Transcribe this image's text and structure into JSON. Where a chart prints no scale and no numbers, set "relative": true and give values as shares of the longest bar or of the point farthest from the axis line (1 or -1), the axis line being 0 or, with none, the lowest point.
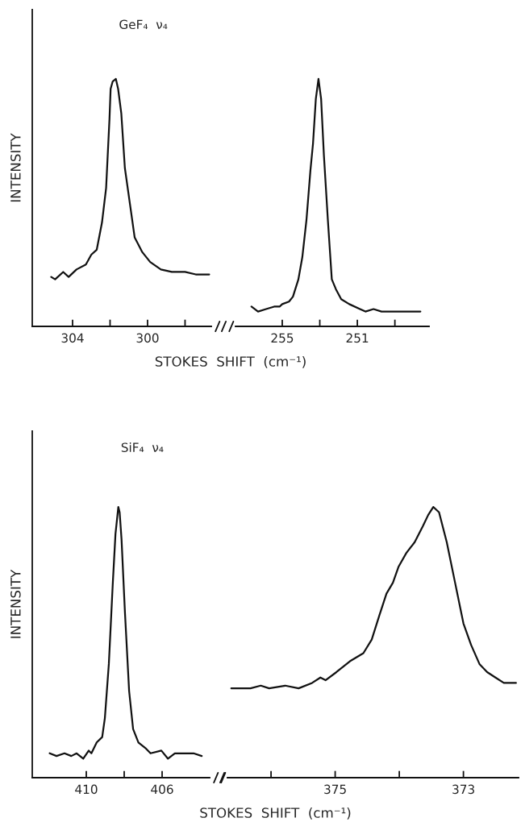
{
  "chart_data": [
    {
      "type": "line",
      "relative": true,
      "ylabel": "INTENSITY",
      "xlabel": "STOKES  SHIFT  (cm⁻¹)",
      "annotations": [
        "GeF₄  ν₄"
      ],
      "xlim": [
        306.15,
        296.6
      ],
      "xticks": [
        304,
        {
          "value": 302,
          "label": null
        },
        300,
        {
          "value": 298,
          "label": null
        }
      ],
      "tick_labels": "x",
      "grid": false,
      "legend": false,
      "series": [
        {
          "color": "#111111",
          "x": [
            305.14,
            304.93,
            304.5,
            304.21,
            303.79,
            303.29,
            303.0,
            302.71,
            302.43,
            302.21,
            302.03,
            301.97,
            301.86,
            301.69,
            301.57,
            301.4,
            301.21,
            300.93,
            300.69,
            300.28,
            299.86,
            299.29,
            298.71,
            298.0,
            297.43,
            296.71
          ],
          "values": [
            0.2,
            0.19,
            0.22,
            0.2,
            0.23,
            0.25,
            0.29,
            0.31,
            0.42,
            0.56,
            0.84,
            0.96,
            0.99,
            1.0,
            0.96,
            0.86,
            0.64,
            0.49,
            0.36,
            0.3,
            0.26,
            0.23,
            0.22,
            0.22,
            0.21,
            0.21
          ]
        }
      ]
    },
    {
      "type": "line",
      "relative": true,
      "xlim": [
        257.49,
        247.18
      ],
      "xticks": [
        255,
        {
          "value": 253,
          "label": null
        },
        251,
        {
          "value": 249,
          "label": null
        }
      ],
      "tick_labels": "x",
      "grid": false,
      "legend": false,
      "series": [
        {
          "color": "#111111",
          "x": [
            256.64,
            256.29,
            255.86,
            255.43,
            255.14,
            255.0,
            254.64,
            254.43,
            254.14,
            253.93,
            253.71,
            253.5,
            253.36,
            253.21,
            253.07,
            252.93,
            252.78,
            252.57,
            252.36,
            252.14,
            251.86,
            251.43,
            250.86,
            250.57,
            250.14,
            249.71,
            249.0,
            248.28,
            247.64
          ],
          "values": [
            0.08,
            0.06,
            0.07,
            0.08,
            0.08,
            0.09,
            0.1,
            0.12,
            0.19,
            0.28,
            0.43,
            0.63,
            0.74,
            0.92,
            1.0,
            0.92,
            0.69,
            0.43,
            0.19,
            0.15,
            0.11,
            0.09,
            0.07,
            0.06,
            0.07,
            0.06,
            0.06,
            0.06,
            0.06
          ]
        }
      ]
    },
    {
      "type": "line",
      "relative": true,
      "ylabel": "INTENSITY",
      "xlabel": "STOKES  SHIFT  (cm⁻¹)",
      "annotations": [
        "SiF₄  ν₄"
      ],
      "xlim": [
        412.85,
        403.49
      ],
      "xticks": [
        410,
        {
          "value": 408,
          "label": null
        },
        406
      ],
      "tick_labels": "x",
      "grid": false,
      "legend": false,
      "series": [
        {
          "color": "#111111",
          "x": [
            411.93,
            411.57,
            411.15,
            410.79,
            410.51,
            410.16,
            409.87,
            409.73,
            409.45,
            409.16,
            409.02,
            408.81,
            408.6,
            408.46,
            408.31,
            408.24,
            408.14,
            407.96,
            407.74,
            407.53,
            407.25,
            406.89,
            406.61,
            406.04,
            405.69,
            405.33,
            404.77,
            404.34,
            403.91
          ],
          "values": [
            0.09,
            0.08,
            0.09,
            0.08,
            0.09,
            0.07,
            0.1,
            0.09,
            0.13,
            0.15,
            0.22,
            0.42,
            0.72,
            0.9,
            1.0,
            0.98,
            0.88,
            0.61,
            0.32,
            0.18,
            0.13,
            0.11,
            0.09,
            0.1,
            0.07,
            0.09,
            0.09,
            0.09,
            0.08
          ]
        }
      ]
    },
    {
      "type": "line",
      "relative": true,
      "xlim": [
        376.68,
        372.14
      ],
      "xticks": [
        {
          "value": 376,
          "label": null
        },
        375,
        {
          "value": 374,
          "label": null
        },
        373
      ],
      "tick_labels": "x",
      "grid": false,
      "legend": false,
      "series": [
        {
          "color": "#111111",
          "x": [
            376.62,
            376.32,
            376.16,
            376.03,
            375.78,
            375.57,
            375.36,
            375.23,
            375.15,
            374.98,
            374.77,
            374.56,
            374.43,
            374.31,
            374.2,
            374.1,
            374.01,
            373.89,
            373.76,
            373.63,
            373.55,
            373.47,
            373.38,
            373.26,
            373.13,
            373.0,
            372.88,
            372.75,
            372.63,
            372.5,
            372.37,
            372.18
          ],
          "values": [
            0.33,
            0.33,
            0.34,
            0.33,
            0.34,
            0.33,
            0.35,
            0.37,
            0.36,
            0.39,
            0.43,
            0.46,
            0.51,
            0.6,
            0.68,
            0.72,
            0.78,
            0.83,
            0.87,
            0.93,
            0.97,
            1.0,
            0.98,
            0.87,
            0.72,
            0.57,
            0.49,
            0.42,
            0.39,
            0.37,
            0.35,
            0.35
          ]
        }
      ]
    }
  ]
}
